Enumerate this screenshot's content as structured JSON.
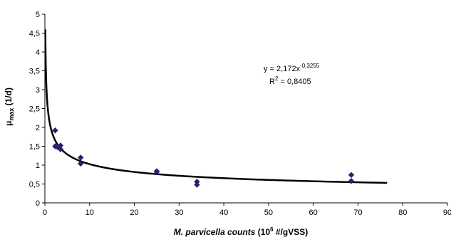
{
  "chart_data": {
    "type": "scatter",
    "xlim": [
      0,
      90
    ],
    "ylim": [
      0,
      5
    ],
    "x_ticks": [
      "0",
      "10",
      "20",
      "30",
      "40",
      "50",
      "60",
      "70",
      "80",
      "90"
    ],
    "y_ticks": [
      "0",
      "0,5",
      "1",
      "1,5",
      "2",
      "2,5",
      "3",
      "3,5",
      "4",
      "4,5",
      "5"
    ],
    "ylabel": {
      "main": "μ",
      "sub": "max",
      "rest": " (1/d)"
    },
    "xlabel": {
      "italic": "M. parvicella counts",
      "pre": "  (10",
      "sup": "6",
      "post": " #/gVSS)"
    },
    "points": [
      {
        "x": 2.3,
        "y": 1.92
      },
      {
        "x": 2.3,
        "y": 1.5
      },
      {
        "x": 2.8,
        "y": 1.48
      },
      {
        "x": 3.5,
        "y": 1.52
      },
      {
        "x": 3.5,
        "y": 1.42
      },
      {
        "x": 8,
        "y": 1.2
      },
      {
        "x": 8,
        "y": 1.04
      },
      {
        "x": 25,
        "y": 0.84
      },
      {
        "x": 25,
        "y": 0.82
      },
      {
        "x": 34,
        "y": 0.56
      },
      {
        "x": 34,
        "y": 0.48
      },
      {
        "x": 68.5,
        "y": 0.74
      },
      {
        "x": 68.5,
        "y": 0.58
      }
    ],
    "trendline": {
      "type": "power",
      "a": 2.172,
      "b": -0.3255,
      "x_start": 0.1,
      "x_end": 76.5,
      "color": "#000000"
    },
    "marker_color": "#2e1f6e",
    "equation": {
      "text": "y = 2,172x",
      "sup": "-0,3255"
    },
    "r_squared": {
      "text": "R",
      "sup": "2",
      "post": " = 0,8405"
    },
    "grid": false
  }
}
